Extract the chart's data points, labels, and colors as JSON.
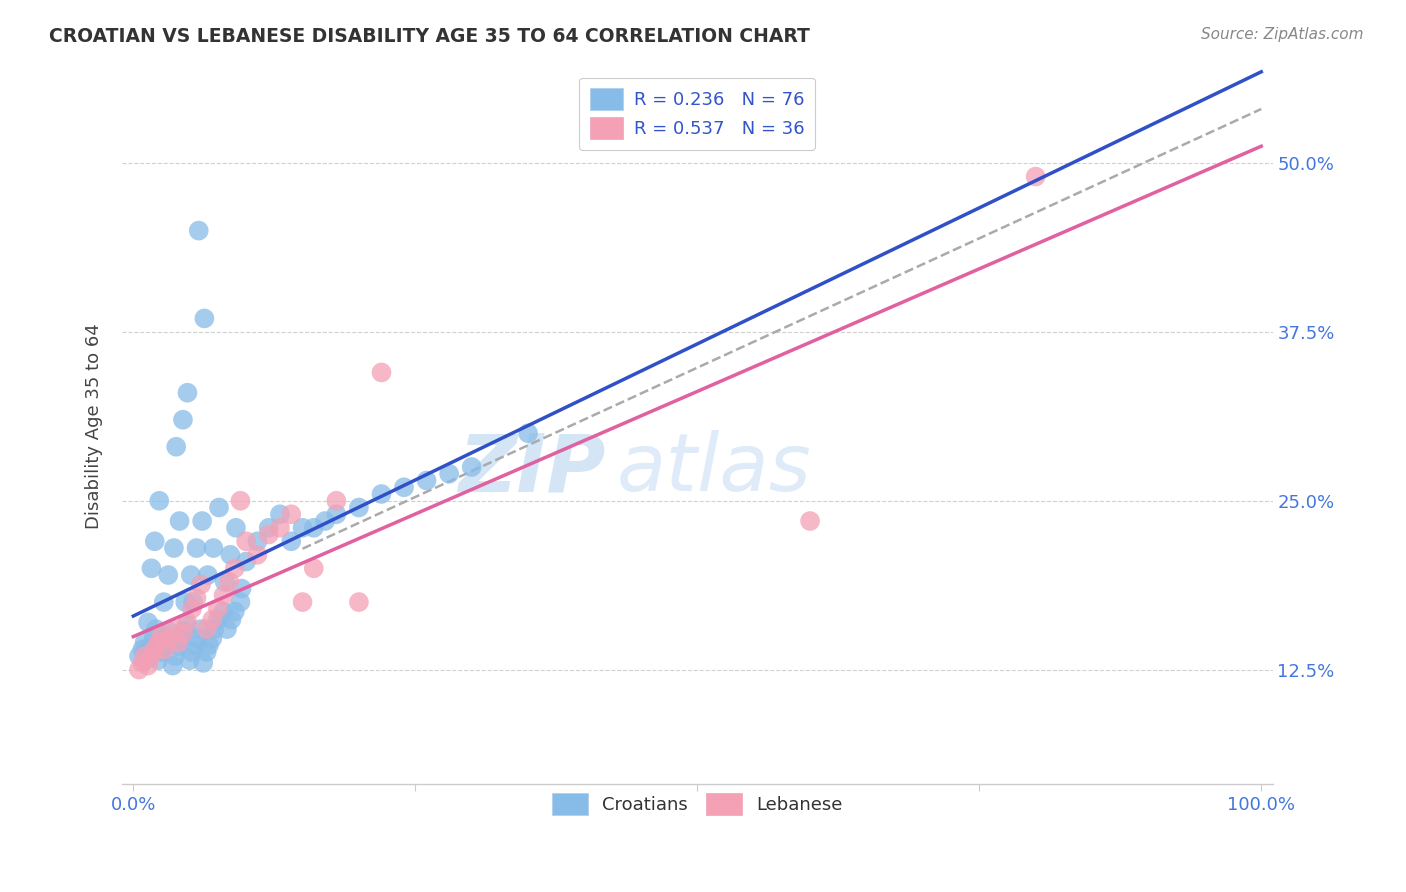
{
  "title": "CROATIAN VS LEBANESE DISABILITY AGE 35 TO 64 CORRELATION CHART",
  "source": "Source: ZipAtlas.com",
  "ylabel": "Disability Age 35 to 64",
  "yticks": [
    "12.5%",
    "25.0%",
    "37.5%",
    "50.0%"
  ],
  "ytick_vals": [
    0.125,
    0.25,
    0.375,
    0.5
  ],
  "R_croatian": 0.236,
  "N_croatian": 76,
  "R_lebanese": 0.537,
  "N_lebanese": 36,
  "color_croatian": "#88bce8",
  "color_lebanese": "#f4a0b5",
  "color_line_croatian": "#3050c8",
  "color_line_lebanese": "#e060a0",
  "color_trendline_dash": "#aaaaaa",
  "color_axis_text": "#4477dd",
  "watermark_zip": "ZIP",
  "watermark_atlas": "atlas",
  "xlim": [
    0,
    1
  ],
  "ylim": [
    0.05,
    0.55
  ],
  "background_color": "#ffffff",
  "legend_text_color": "#3355cc",
  "croatian_x": [
    0.005,
    0.008,
    0.01,
    0.012,
    0.015,
    0.018,
    0.02,
    0.022,
    0.025,
    0.028,
    0.03,
    0.032,
    0.035,
    0.037,
    0.04,
    0.042,
    0.045,
    0.047,
    0.05,
    0.052,
    0.055,
    0.057,
    0.06,
    0.062,
    0.065,
    0.067,
    0.07,
    0.072,
    0.075,
    0.08,
    0.083,
    0.087,
    0.09,
    0.095,
    0.01,
    0.013,
    0.016,
    0.019,
    0.023,
    0.027,
    0.031,
    0.036,
    0.041,
    0.046,
    0.051,
    0.056,
    0.061,
    0.066,
    0.071,
    0.076,
    0.081,
    0.086,
    0.091,
    0.096,
    0.1,
    0.11,
    0.12,
    0.13,
    0.14,
    0.15,
    0.16,
    0.17,
    0.18,
    0.2,
    0.22,
    0.24,
    0.26,
    0.28,
    0.3,
    0.35,
    0.038,
    0.044,
    0.048,
    0.053,
    0.058,
    0.063
  ],
  "croatian_y": [
    0.135,
    0.14,
    0.145,
    0.138,
    0.142,
    0.148,
    0.155,
    0.132,
    0.138,
    0.143,
    0.148,
    0.153,
    0.128,
    0.135,
    0.142,
    0.148,
    0.153,
    0.158,
    0.132,
    0.138,
    0.143,
    0.148,
    0.155,
    0.13,
    0.138,
    0.143,
    0.148,
    0.155,
    0.162,
    0.168,
    0.155,
    0.162,
    0.168,
    0.175,
    0.132,
    0.16,
    0.2,
    0.22,
    0.25,
    0.175,
    0.195,
    0.215,
    0.235,
    0.175,
    0.195,
    0.215,
    0.235,
    0.195,
    0.215,
    0.245,
    0.19,
    0.21,
    0.23,
    0.185,
    0.205,
    0.22,
    0.23,
    0.24,
    0.22,
    0.23,
    0.23,
    0.235,
    0.24,
    0.245,
    0.255,
    0.26,
    0.265,
    0.27,
    0.275,
    0.3,
    0.29,
    0.31,
    0.33,
    0.175,
    0.45,
    0.385
  ],
  "lebanese_x": [
    0.005,
    0.008,
    0.01,
    0.013,
    0.016,
    0.019,
    0.022,
    0.025,
    0.028,
    0.032,
    0.036,
    0.04,
    0.044,
    0.048,
    0.052,
    0.056,
    0.06,
    0.065,
    0.07,
    0.075,
    0.08,
    0.085,
    0.09,
    0.095,
    0.1,
    0.11,
    0.12,
    0.13,
    0.14,
    0.15,
    0.16,
    0.18,
    0.2,
    0.22,
    0.6,
    0.8
  ],
  "lebanese_y": [
    0.125,
    0.13,
    0.135,
    0.128,
    0.135,
    0.14,
    0.145,
    0.15,
    0.14,
    0.148,
    0.155,
    0.145,
    0.152,
    0.16,
    0.17,
    0.178,
    0.188,
    0.155,
    0.162,
    0.17,
    0.18,
    0.19,
    0.2,
    0.25,
    0.22,
    0.21,
    0.225,
    0.23,
    0.24,
    0.175,
    0.2,
    0.25,
    0.175,
    0.345,
    0.235,
    0.49
  ]
}
